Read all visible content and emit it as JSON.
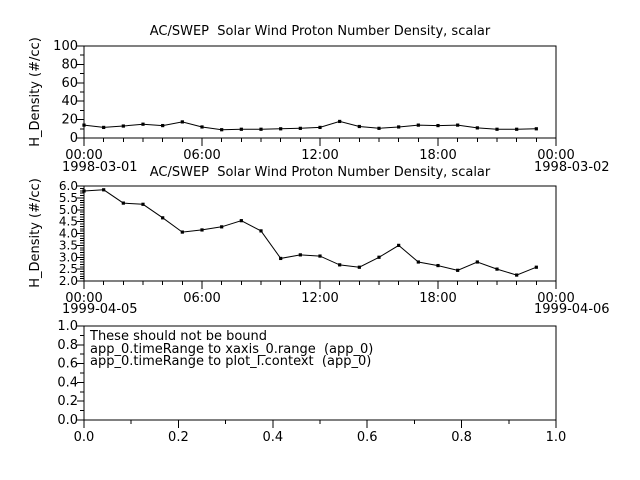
{
  "page": {
    "background": "#ffffff",
    "foreground": "#000000",
    "line_color": "#000000",
    "marker_color": "#000000"
  },
  "chart_data": [
    {
      "type": "line",
      "title": "AC/SWEP  Solar Wind Proton Number Density, scalar",
      "ylabel": "H_Density (#/cc)",
      "ylim": [
        0,
        100
      ],
      "ytick_labels": [
        "0",
        "20",
        "40",
        "60",
        "80",
        "100"
      ],
      "xtick_labels": [
        "00:00",
        "06:00",
        "12:00",
        "18:00",
        "00:00"
      ],
      "x_start_label": "1998-03-01",
      "x_end_label": "1998-03-02",
      "xlim_hours": [
        0,
        24
      ],
      "x_hours": [
        0,
        1,
        2,
        3,
        4,
        5,
        6,
        7,
        8,
        9,
        10,
        11,
        12,
        13,
        14,
        15,
        16,
        17,
        18,
        19,
        20,
        21,
        22,
        23
      ],
      "values": [
        14,
        11.5,
        13,
        15,
        13.5,
        17.5,
        12,
        9,
        9.5,
        9.5,
        10,
        10.5,
        11.5,
        18,
        12.5,
        10.5,
        12,
        14,
        13.5,
        14,
        11,
        9.5,
        9.5,
        10
      ],
      "grid": false,
      "legend": null
    },
    {
      "type": "line",
      "title": "AC/SWEP  Solar Wind Proton Number Density, scalar",
      "ylabel": "H_Density (#/cc)",
      "ylim": [
        2.0,
        6.0
      ],
      "ytick_labels": [
        "2.0",
        "2.5",
        "3.0",
        "3.5",
        "4.0",
        "4.5",
        "5.0",
        "5.5",
        "6.0"
      ],
      "xtick_labels": [
        "00:00",
        "06:00",
        "12:00",
        "18:00",
        "00:00"
      ],
      "x_start_label": "1999-04-05",
      "x_end_label": "1999-04-06",
      "xlim_hours": [
        0,
        24
      ],
      "x_hours": [
        0,
        1,
        2,
        3,
        4,
        5,
        6,
        7,
        8,
        9,
        10,
        11,
        12,
        13,
        14,
        15,
        16,
        17,
        18,
        19,
        20,
        21,
        22,
        23
      ],
      "values": [
        5.79,
        5.84,
        5.28,
        5.23,
        4.66,
        4.06,
        4.15,
        4.28,
        4.54,
        4.11,
        2.95,
        3.1,
        3.05,
        2.68,
        2.58,
        3.0,
        3.5,
        2.8,
        2.65,
        2.45,
        2.8,
        2.5,
        2.25,
        2.58
      ],
      "grid": false,
      "legend": null
    },
    {
      "type": "line",
      "title": "",
      "ylabel": "",
      "ylim": [
        0.0,
        1.0
      ],
      "ytick_labels": [
        "0.0",
        "0.2",
        "0.4",
        "0.6",
        "0.8",
        "1.0"
      ],
      "xlim": [
        0.0,
        1.0
      ],
      "xtick_labels": [
        "0.0",
        "0.2",
        "0.4",
        "0.6",
        "0.8",
        "1.0"
      ],
      "x_hours": [],
      "values": [],
      "grid": false,
      "legend": null,
      "annotation_lines": [
        "These should not be bound",
        "app_0.timeRange to xaxis_0.range  (app_0)",
        "app_0.timeRange to plot_I.context  (app_0)"
      ]
    }
  ]
}
